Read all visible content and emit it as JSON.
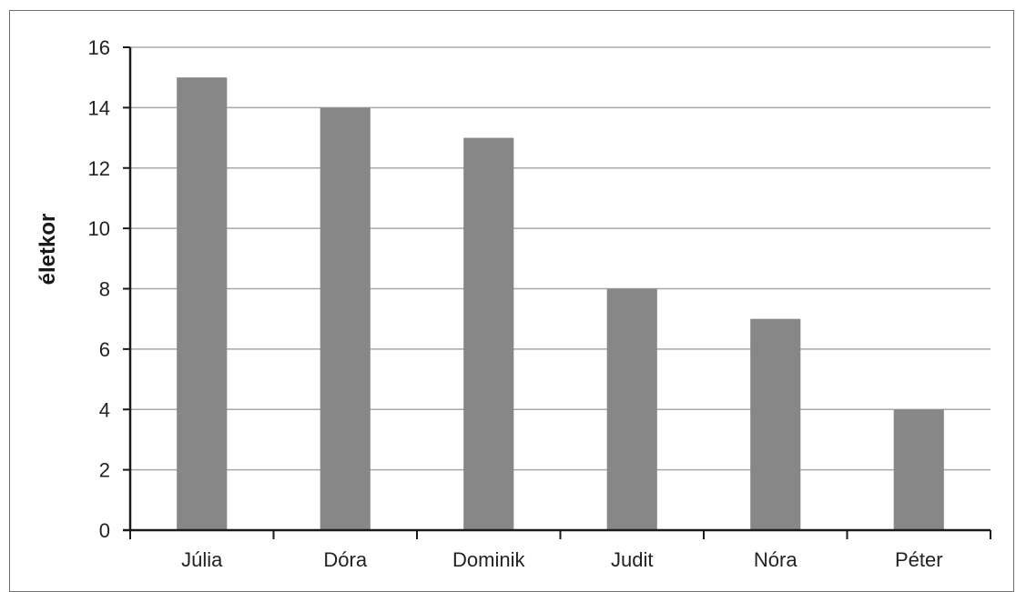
{
  "chart_data": {
    "type": "bar",
    "title": "",
    "xlabel": "",
    "ylabel": "életkor",
    "categories": [
      "Júlia",
      "Dóra",
      "Dominik",
      "Judit",
      "Nóra",
      "Péter"
    ],
    "values": [
      15,
      14,
      13,
      8,
      7,
      4
    ],
    "ylim": [
      0,
      16
    ],
    "yticks": [
      0,
      2,
      4,
      6,
      8,
      10,
      12,
      14,
      16
    ],
    "grid": true,
    "colors": {
      "bar": "#878787",
      "grid": "#a8a8a8",
      "axis": "#1a1a1a"
    }
  }
}
